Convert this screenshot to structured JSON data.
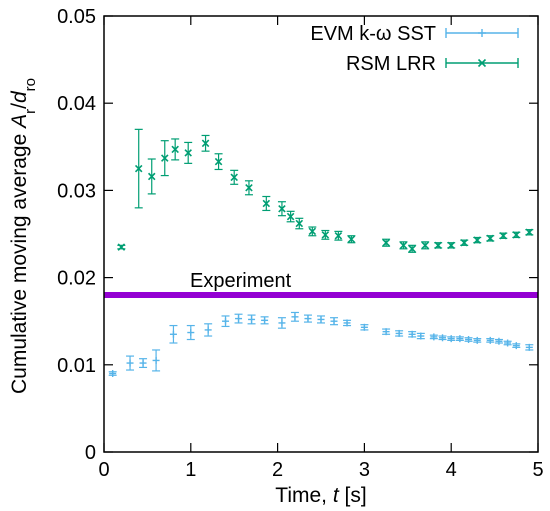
{
  "chart_data": {
    "type": "scatter",
    "title": "",
    "xlabel": {
      "prefix": "Time, ",
      "var": "t",
      "suffix": " [s]"
    },
    "ylabel": {
      "prefix": "Cumulative moving average ",
      "num": "A",
      "num_sub": "r",
      "slash": "/",
      "den": "d",
      "den_sub": "ro"
    },
    "xlim": [
      0,
      5
    ],
    "ylim": [
      0,
      0.05
    ],
    "x_ticks": [
      0,
      1,
      2,
      3,
      4,
      5
    ],
    "x_tick_labels": [
      "0",
      "1",
      "2",
      "3",
      "4",
      "5"
    ],
    "y_ticks": [
      0,
      0.01,
      0.02,
      0.03,
      0.04,
      0.05
    ],
    "y_tick_labels": [
      "0",
      "0.01",
      "0.02",
      "0.03",
      "0.04",
      "0.05"
    ],
    "grid": false,
    "legend_position": "top-right",
    "reference_line": {
      "label": "Experiment",
      "y": 0.018,
      "color": "#9400d3"
    },
    "series": [
      {
        "name": "EVM k-ω SST",
        "color": "#56b4e9",
        "marker": "plus",
        "x": [
          0.1,
          0.3,
          0.45,
          0.6,
          0.8,
          1.0,
          1.2,
          1.4,
          1.55,
          1.7,
          1.85,
          2.05,
          2.2,
          2.35,
          2.5,
          2.65,
          2.8,
          3.0,
          3.25,
          3.4,
          3.55,
          3.65,
          3.8,
          3.9,
          4.0,
          4.1,
          4.2,
          4.3,
          4.45,
          4.55,
          4.65,
          4.75,
          4.9
        ],
        "y": [
          0.009,
          0.0102,
          0.0102,
          0.0105,
          0.0135,
          0.0137,
          0.014,
          0.015,
          0.0153,
          0.0152,
          0.0151,
          0.0148,
          0.0155,
          0.0153,
          0.0152,
          0.015,
          0.0148,
          0.0143,
          0.0138,
          0.0136,
          0.0135,
          0.0133,
          0.0132,
          0.0131,
          0.013,
          0.013,
          0.0129,
          0.0128,
          0.0128,
          0.0127,
          0.0125,
          0.0122,
          0.012
        ],
        "err": [
          0.0002,
          0.0008,
          0.0005,
          0.0012,
          0.001,
          0.0008,
          0.0007,
          0.0006,
          0.0005,
          0.0005,
          0.0004,
          0.0006,
          0.0005,
          0.0004,
          0.0004,
          0.0004,
          0.0003,
          0.0003,
          0.0003,
          0.0003,
          0.0003,
          0.0003,
          0.0002,
          0.0002,
          0.0002,
          0.0002,
          0.0002,
          0.0002,
          0.0002,
          0.0002,
          0.0002,
          0.0002,
          0.0003
        ]
      },
      {
        "name": "RSM LRR",
        "color": "#009e73",
        "marker": "cross",
        "x": [
          0.2,
          0.4,
          0.55,
          0.7,
          0.82,
          0.97,
          1.17,
          1.32,
          1.5,
          1.67,
          1.87,
          2.05,
          2.15,
          2.25,
          2.4,
          2.55,
          2.7,
          2.85,
          3.25,
          3.45,
          3.55,
          3.7,
          3.85,
          4.0,
          4.15,
          4.3,
          4.45,
          4.6,
          4.75,
          4.9
        ],
        "y": [
          0.0235,
          0.0325,
          0.0316,
          0.0337,
          0.0347,
          0.0343,
          0.0354,
          0.0333,
          0.0315,
          0.0303,
          0.0285,
          0.0279,
          0.027,
          0.0262,
          0.0253,
          0.0249,
          0.0248,
          0.0244,
          0.024,
          0.0237,
          0.0233,
          0.0237,
          0.0237,
          0.0237,
          0.024,
          0.0243,
          0.0245,
          0.0248,
          0.0249,
          0.0252
        ],
        "err": [
          0.0002,
          0.0045,
          0.002,
          0.002,
          0.0012,
          0.0012,
          0.0009,
          0.0009,
          0.0008,
          0.0008,
          0.0008,
          0.0008,
          0.0006,
          0.0006,
          0.0005,
          0.0005,
          0.0005,
          0.0004,
          0.0004,
          0.0004,
          0.0004,
          0.0004,
          0.0003,
          0.0003,
          0.0003,
          0.0003,
          0.0003,
          0.0003,
          0.0003,
          0.0003
        ]
      }
    ]
  }
}
